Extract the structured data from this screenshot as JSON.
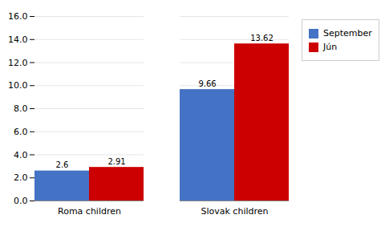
{
  "chart_data": {
    "type": "bar",
    "categories": [
      "Roma children",
      "Slovak children"
    ],
    "series": [
      {
        "name": "September",
        "color": "#4472C4",
        "values": [
          2.6,
          9.66
        ]
      },
      {
        "name": "Jún",
        "color": "#CC0000",
        "values": [
          2.91,
          13.62
        ]
      }
    ],
    "ylim": [
      0,
      16.0
    ],
    "yticks": [
      {
        "value": 0,
        "label": "0.0"
      },
      {
        "value": 2,
        "label": "2.0"
      },
      {
        "value": 4,
        "label": "4.0"
      },
      {
        "value": 6,
        "label": "6.0"
      },
      {
        "value": 8,
        "label": "8.0"
      },
      {
        "value": 10,
        "label": "10.0"
      },
      {
        "value": 12,
        "label": "12.0"
      },
      {
        "value": 14,
        "label": "14.0"
      },
      {
        "value": 16,
        "label": "16.0"
      }
    ],
    "grid": true,
    "legend": "upper right",
    "data_labels": true
  }
}
